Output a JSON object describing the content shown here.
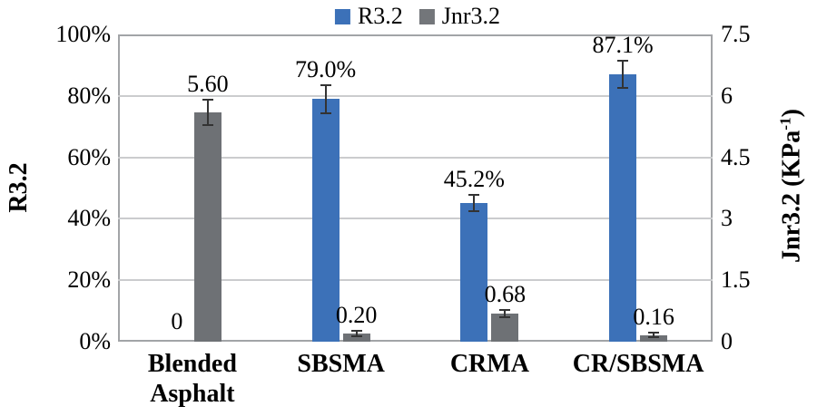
{
  "legend": {
    "items": [
      {
        "name": "R3.2",
        "label": "R3.2",
        "color": "#3c71b8"
      },
      {
        "name": "Jnr3.2",
        "label": "Jnr3.2",
        "color": "#73767a"
      }
    ]
  },
  "left_axis": {
    "title": "R3.2",
    "ticks": [
      "100%",
      "80%",
      "60%",
      "40%",
      "20%",
      "0%"
    ]
  },
  "right_axis": {
    "title_main": "Jnr3.2 (KPa",
    "title_sup": "-1",
    "title_end": ")",
    "ticks": [
      "7.5",
      "6",
      "4.5",
      "3",
      "1.5",
      "0"
    ]
  },
  "chart_data": {
    "type": "bar",
    "categories": [
      "Blended Asphalt",
      "SBSMA",
      "CRMA",
      "CR/SBSMA"
    ],
    "series": [
      {
        "name": "R3.2",
        "axis": "left",
        "color": "#3c71b8",
        "unit": "%",
        "values": [
          0,
          79.0,
          45.2,
          87.1
        ],
        "labels": [
          "0",
          "79.0%",
          "45.2%",
          "87.1%"
        ],
        "error_bars": [
          0,
          4.6,
          2.6,
          4.4
        ]
      },
      {
        "name": "Jnr3.2",
        "axis": "right",
        "color": "#6e7175",
        "unit": "KPa-1",
        "values": [
          5.6,
          0.2,
          0.68,
          0.16
        ],
        "labels": [
          "5.60",
          "0.20",
          "0.68",
          "0.16"
        ],
        "error_bars": [
          0.31,
          0.06,
          0.09,
          0.06
        ]
      }
    ],
    "left_ylim": [
      0,
      100
    ],
    "right_ylim": [
      0,
      7.5
    ],
    "grid": true,
    "legend_position": "top",
    "title": "",
    "xlabel": "",
    "ylabel_left": "R3.2",
    "ylabel_right": "Jnr3.2 (KPa-1)"
  },
  "colors": {
    "grid": "#cbccce",
    "frame": "#a2a4a7",
    "error_bar": "#333333",
    "background": "#ffffff"
  }
}
